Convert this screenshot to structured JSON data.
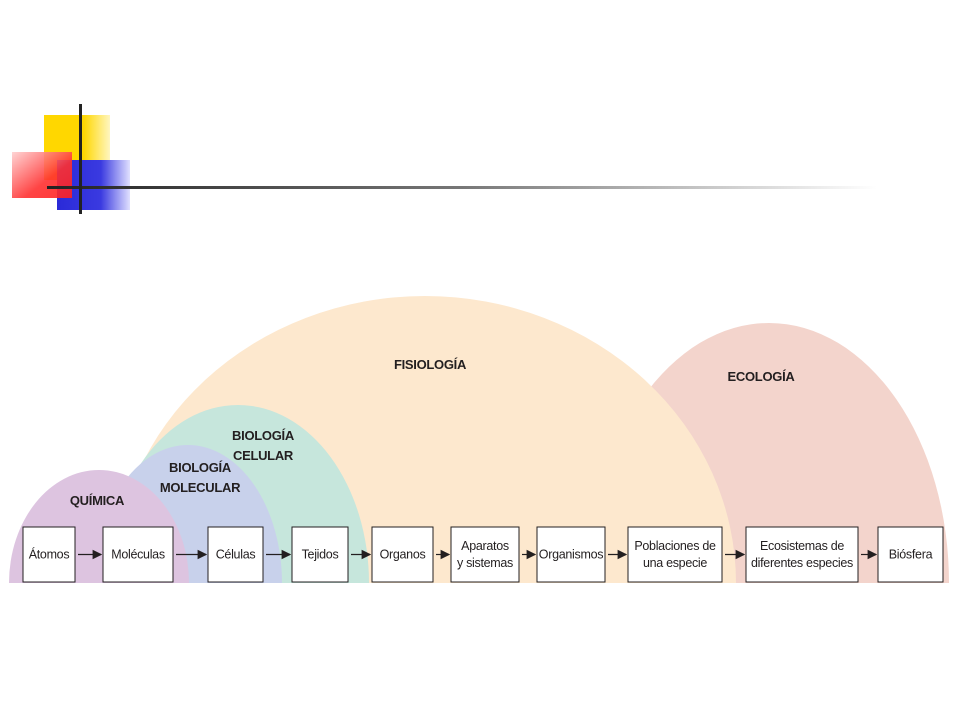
{
  "domains": [
    {
      "lines": [
        "ECOLOGÍA"
      ]
    },
    {
      "lines": [
        "FISIOLOGÍA"
      ]
    },
    {
      "lines": [
        "BIOLOGÍA",
        "CELULAR"
      ]
    },
    {
      "lines": [
        "BIOLOGÍA",
        "MOLECULAR"
      ]
    },
    {
      "lines": [
        "QUÍMICA"
      ]
    }
  ],
  "levels": [
    {
      "lines": [
        "Átomos"
      ]
    },
    {
      "lines": [
        "Moléculas"
      ]
    },
    {
      "lines": [
        "Células"
      ]
    },
    {
      "lines": [
        "Tejidos"
      ]
    },
    {
      "lines": [
        "Organos"
      ]
    },
    {
      "lines": [
        "Aparatos",
        "y sistemas"
      ]
    },
    {
      "lines": [
        "Organismos"
      ]
    },
    {
      "lines": [
        "Poblaciones de",
        "una especie"
      ]
    },
    {
      "lines": [
        "Ecosistemas de",
        "diferentes especies"
      ]
    },
    {
      "lines": [
        "Biósfera"
      ]
    }
  ]
}
